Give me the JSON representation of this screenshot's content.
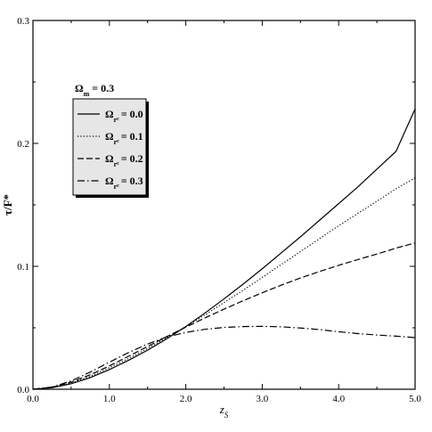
{
  "chart_data": {
    "type": "line",
    "xlabel": "z",
    "xlabel_sub": "S",
    "ylabel": "τ/F*",
    "xlim": [
      0.0,
      5.0
    ],
    "ylim": [
      0.0,
      0.3
    ],
    "x_ticks": [
      "0.0",
      "1.0",
      "2.0",
      "3.0",
      "4.0",
      "5.0"
    ],
    "y_ticks": [
      "0.0",
      "0.1",
      "0.2",
      "0.3"
    ],
    "x_tick_values": [
      0,
      1,
      2,
      3,
      4,
      5
    ],
    "y_tick_values": [
      0,
      0.1,
      0.2,
      0.3
    ],
    "grid": false,
    "legend_header": {
      "symbol": "Ω",
      "subscript": "m",
      "text": " = 0.3"
    },
    "legend_placement": "upper-left",
    "x": [
      0.0,
      0.25,
      0.5,
      0.75,
      1.0,
      1.25,
      1.5,
      1.75,
      2.0,
      2.25,
      2.5,
      2.75,
      3.0,
      3.25,
      3.5,
      3.75,
      4.0,
      4.25,
      4.5,
      4.75,
      5.0
    ],
    "series": [
      {
        "name": "= 0.0",
        "label_symbol": "Ω",
        "label_sub": "r",
        "label_subsub": "c",
        "dash": "solid",
        "values": [
          0.0,
          0.0012,
          0.0045,
          0.0095,
          0.016,
          0.0235,
          0.0318,
          0.041,
          0.051,
          0.062,
          0.0735,
          0.0855,
          0.098,
          0.111,
          0.124,
          0.1375,
          0.151,
          0.1645,
          0.179,
          0.1935,
          0.228
        ]
      },
      {
        "name": "= 0.1",
        "label_symbol": "Ω",
        "label_sub": "r",
        "label_subsub": "c",
        "dash": "dotted",
        "values": [
          0.0,
          0.0014,
          0.005,
          0.0105,
          0.0175,
          0.025,
          0.0332,
          0.042,
          0.051,
          0.0605,
          0.0705,
          0.0805,
          0.091,
          0.1015,
          0.112,
          0.1225,
          0.133,
          0.143,
          0.153,
          0.163,
          0.172
        ]
      },
      {
        "name": "= 0.2",
        "label_symbol": "Ω",
        "label_sub": "r",
        "label_subsub": "c",
        "dash": "dashed",
        "values": [
          0.0,
          0.0016,
          0.0058,
          0.0118,
          0.019,
          0.0268,
          0.0348,
          0.0428,
          0.0505,
          0.058,
          0.0652,
          0.072,
          0.0785,
          0.0847,
          0.0905,
          0.0958,
          0.1008,
          0.1055,
          0.11,
          0.1148,
          0.119
        ]
      },
      {
        "name": "= 0.3",
        "label_symbol": "Ω",
        "label_sub": "r",
        "label_subsub": "c",
        "dash": "dashdot",
        "values": [
          0.0,
          0.0018,
          0.0068,
          0.014,
          0.022,
          0.0298,
          0.0368,
          0.0425,
          0.0462,
          0.0488,
          0.0503,
          0.051,
          0.0512,
          0.0508,
          0.0498,
          0.0485,
          0.0468,
          0.0453,
          0.0441,
          0.0432,
          0.042
        ]
      }
    ]
  }
}
